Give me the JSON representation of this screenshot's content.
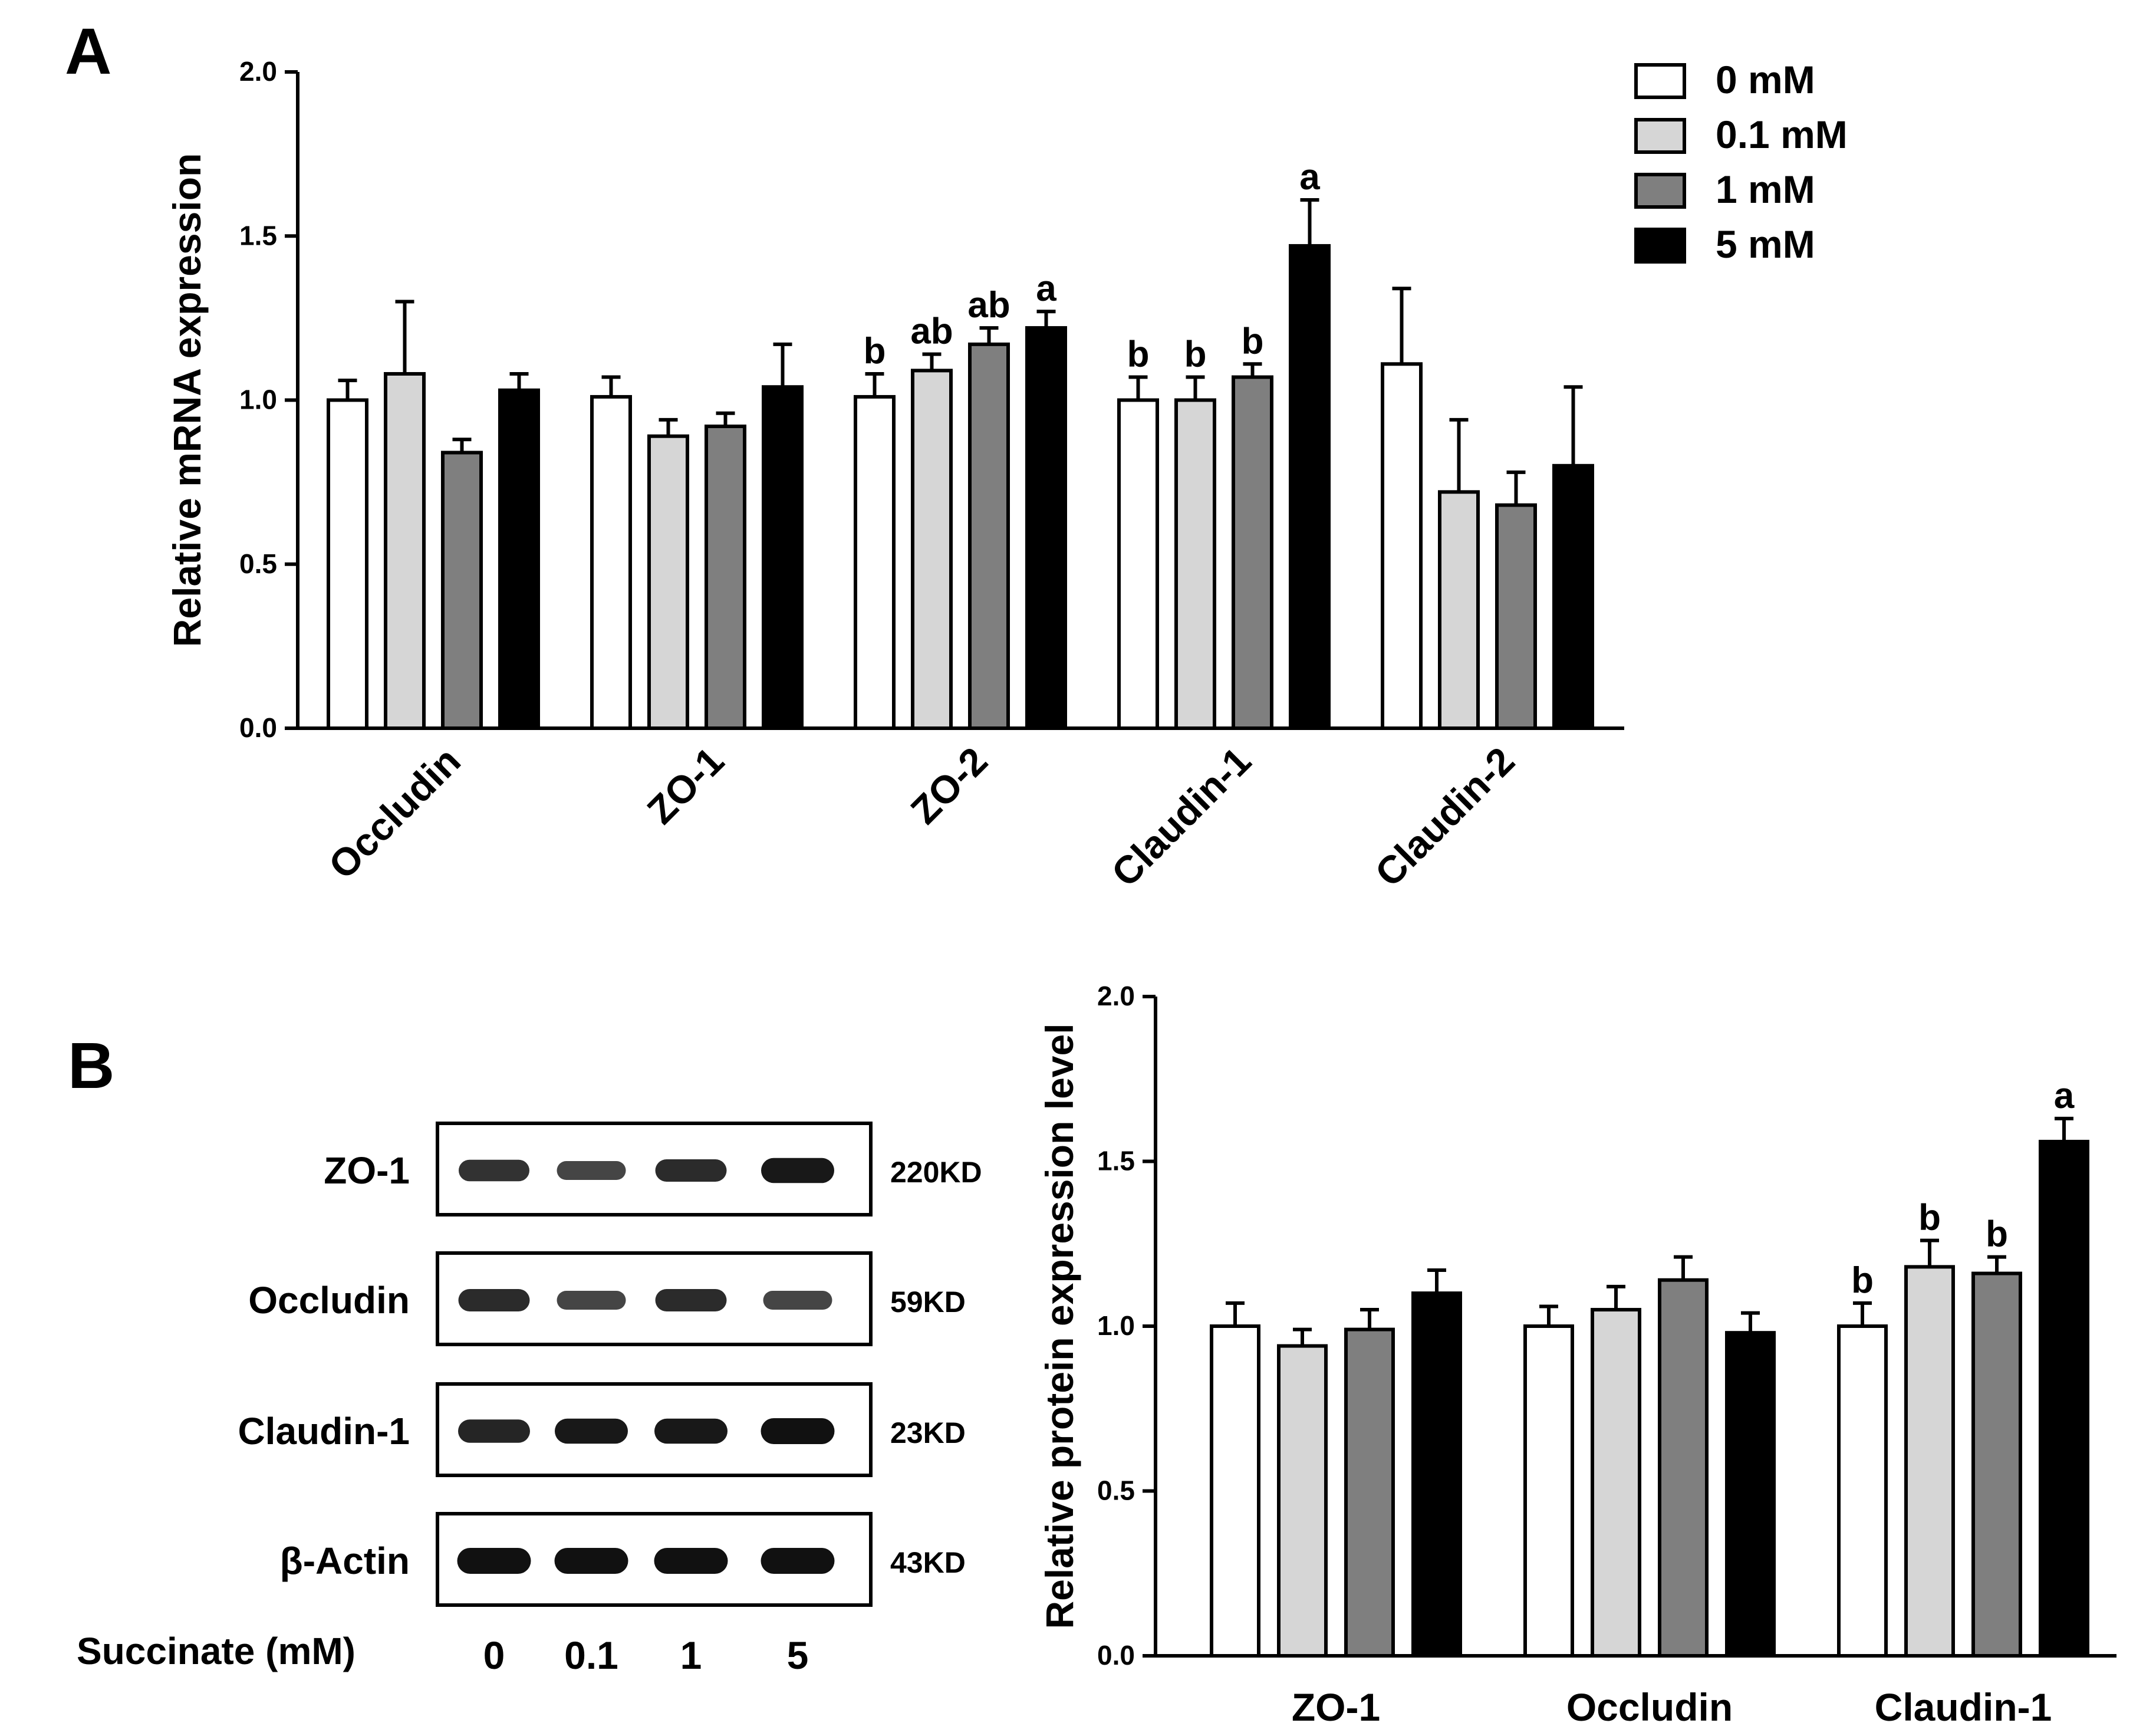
{
  "panel_labels": {
    "a": "A",
    "b": "B"
  },
  "legend": [
    {
      "label": "0 mM",
      "color": "#ffffff"
    },
    {
      "label": "0.1 mM",
      "color": "#d6d6d6"
    },
    {
      "label": "1 mM",
      "color": "#7f7f7f"
    },
    {
      "label": "5 mM",
      "color": "#000000"
    }
  ],
  "western_blot": {
    "rows": [
      {
        "protein": "ZO-1",
        "size": "220KD",
        "intensity": [
          0.75,
          0.6,
          0.8,
          0.95
        ]
      },
      {
        "protein": "Occludin",
        "size": "59KD",
        "intensity": [
          0.8,
          0.6,
          0.8,
          0.6
        ]
      },
      {
        "protein": "Claudin-1",
        "size": "23KD",
        "intensity": [
          0.85,
          0.95,
          0.95,
          1.0
        ]
      },
      {
        "protein": "β-Actin",
        "size": "43KD",
        "intensity": [
          1.0,
          1.0,
          1.0,
          1.0
        ]
      }
    ],
    "lanes_title": "Succinate (mM)",
    "lanes": [
      "0",
      "0.1",
      "1",
      "5"
    ]
  },
  "chart_data": [
    {
      "type": "bar",
      "title": "",
      "xlabel": "",
      "ylabel": "Relative mRNA expression",
      "ylim": [
        0,
        2.0
      ],
      "yticks": [
        "0.0",
        "0.5",
        "1.0",
        "1.5",
        "2.0"
      ],
      "ytick_values": [
        0,
        0.5,
        1.0,
        1.5,
        2.0
      ],
      "categories": [
        "Occludin",
        "ZO-1",
        "ZO-2",
        "Claudin-1",
        "Claudin-2"
      ],
      "series": [
        {
          "name": "0 mM",
          "values": [
            1.0,
            1.01,
            1.01,
            1.0,
            1.11
          ],
          "errors": [
            0.06,
            0.06,
            0.07,
            0.07,
            0.23
          ],
          "labels": [
            "",
            "",
            "b",
            "b",
            ""
          ]
        },
        {
          "name": "0.1 mM",
          "values": [
            1.08,
            0.89,
            1.09,
            1.0,
            0.72
          ],
          "errors": [
            0.22,
            0.05,
            0.05,
            0.07,
            0.22
          ],
          "labels": [
            "",
            "",
            "ab",
            "b",
            ""
          ]
        },
        {
          "name": "1 mM",
          "values": [
            0.84,
            0.92,
            1.17,
            1.07,
            0.68
          ],
          "errors": [
            0.04,
            0.04,
            0.05,
            0.04,
            0.1
          ],
          "labels": [
            "",
            "",
            "ab",
            "b",
            ""
          ]
        },
        {
          "name": "5 mM",
          "values": [
            1.03,
            1.04,
            1.22,
            1.47,
            0.8
          ],
          "errors": [
            0.05,
            0.13,
            0.05,
            0.14,
            0.24
          ],
          "labels": [
            "",
            "",
            "a",
            "a",
            ""
          ]
        }
      ],
      "xtick_rotation": "45"
    },
    {
      "type": "bar",
      "title": "",
      "xlabel": "",
      "ylabel": "Relative protein expression level",
      "ylim": [
        0,
        2.0
      ],
      "yticks": [
        "0.0",
        "0.5",
        "1.0",
        "1.5",
        "2.0"
      ],
      "ytick_values": [
        0,
        0.5,
        1.0,
        1.5,
        2.0
      ],
      "categories": [
        "ZO-1",
        "Occludin",
        "Claudin-1"
      ],
      "series": [
        {
          "name": "0 mM",
          "values": [
            1.0,
            1.0,
            1.0
          ],
          "errors": [
            0.07,
            0.06,
            0.07
          ],
          "labels": [
            "",
            "",
            "b"
          ]
        },
        {
          "name": "0.1 mM",
          "values": [
            0.94,
            1.05,
            1.18
          ],
          "errors": [
            0.05,
            0.07,
            0.08
          ],
          "labels": [
            "",
            "",
            "b"
          ]
        },
        {
          "name": "1 mM",
          "values": [
            0.99,
            1.14,
            1.16
          ],
          "errors": [
            0.06,
            0.07,
            0.05
          ],
          "labels": [
            "",
            "",
            "b"
          ]
        },
        {
          "name": "5 mM",
          "values": [
            1.1,
            0.98,
            1.56
          ],
          "errors": [
            0.07,
            0.06,
            0.07
          ],
          "labels": [
            "",
            "",
            "a"
          ]
        }
      ],
      "xtick_rotation": "0"
    }
  ]
}
